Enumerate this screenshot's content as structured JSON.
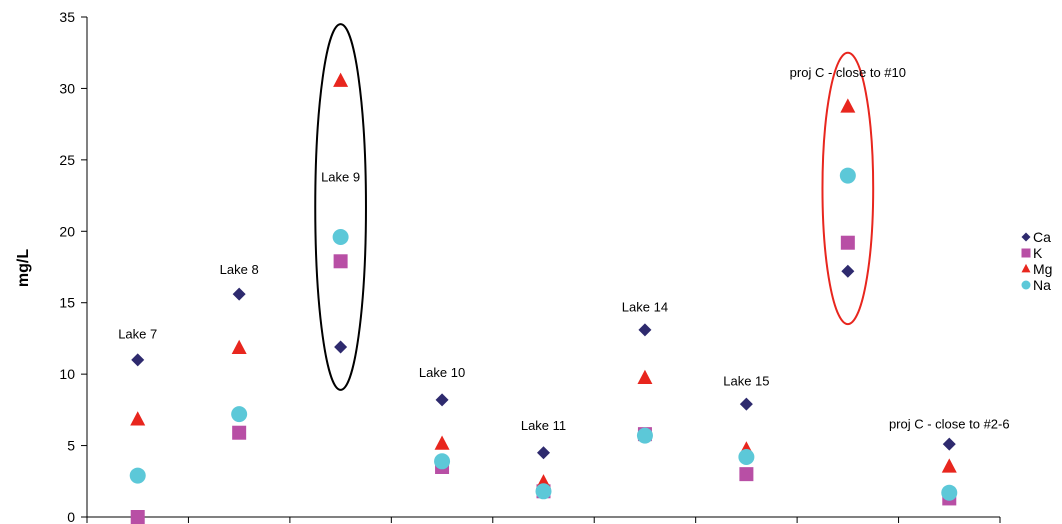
{
  "chart_data": {
    "type": "scatter",
    "title": "",
    "xlabel": "",
    "ylabel": "mg/L",
    "ylim": [
      0,
      35
    ],
    "yticks": [
      0,
      5,
      10,
      15,
      20,
      25,
      30,
      35
    ],
    "grid": false,
    "legend_position": "right",
    "categories": [
      "1",
      "2",
      "3",
      "4",
      "5",
      "6",
      "7",
      "8",
      "9"
    ],
    "series": [
      {
        "name": "Ca",
        "marker": "diamond",
        "color": "#2e2a6e",
        "values": [
          11.0,
          15.6,
          11.9,
          8.2,
          4.5,
          13.1,
          7.9,
          17.2,
          5.1
        ]
      },
      {
        "name": "K",
        "marker": "square",
        "color": "#b84fa5",
        "values": [
          0.0,
          5.9,
          17.9,
          3.5,
          1.8,
          5.8,
          3.0,
          19.2,
          1.3
        ]
      },
      {
        "name": "Mg",
        "marker": "triangle",
        "color": "#e8261e",
        "values": [
          6.8,
          11.8,
          30.5,
          5.1,
          2.4,
          9.7,
          4.7,
          28.7,
          3.5
        ]
      },
      {
        "name": "Na",
        "marker": "circle",
        "color": "#5cc8d8",
        "values": [
          2.9,
          7.2,
          19.6,
          3.9,
          1.8,
          5.7,
          4.2,
          23.9,
          1.7
        ]
      }
    ],
    "annotations": [
      {
        "text": "Lake 7",
        "category_index": 0,
        "y": 12.5
      },
      {
        "text": "Lake 8",
        "category_index": 1,
        "y": 17.0
      },
      {
        "text": "Lake 9",
        "category_index": 2,
        "y": 23.5
      },
      {
        "text": "Lake 10",
        "category_index": 3,
        "y": 9.8
      },
      {
        "text": "Lake 11",
        "category_index": 4,
        "y": 6.1
      },
      {
        "text": "Lake 14",
        "category_index": 5,
        "y": 14.4
      },
      {
        "text": "Lake 15",
        "category_index": 6,
        "y": 9.2
      },
      {
        "text": "proj C - close to #10",
        "category_index": 7,
        "y": 30.8
      },
      {
        "text": "proj C - close to #2-6",
        "category_index": 8,
        "y": 6.2
      }
    ],
    "highlights": [
      {
        "category_index": 2,
        "y_center": 21.7,
        "y_radius": 12.8,
        "color": "#000000"
      },
      {
        "category_index": 7,
        "y_center": 23.0,
        "y_radius": 9.5,
        "color": "#e8261e"
      }
    ]
  }
}
